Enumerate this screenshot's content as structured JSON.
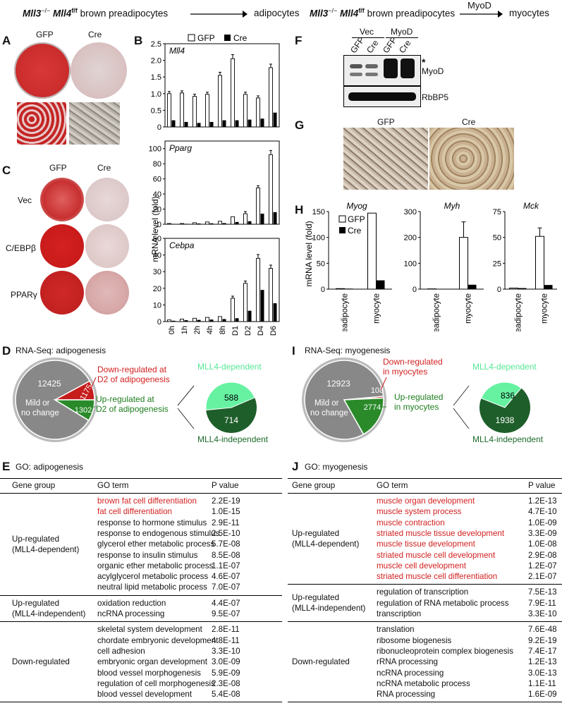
{
  "header_left": {
    "prefix": "Mll3",
    "sup1": "−/−",
    "mid": "Mll4",
    "sup2": "f/f",
    "rest": "brown preadipocytes",
    "target": "adipocytes"
  },
  "header_right": {
    "prefix": "Mll3",
    "sup1": "−/−",
    "mid": "Mll4",
    "sup2": "f/f",
    "rest": "brown preadipocytes",
    "arrow_label": "MyoD",
    "target": "myocytes"
  },
  "panels": {
    "A": "A",
    "B": "B",
    "C": "C",
    "D": "D",
    "E": "E",
    "F": "F",
    "G": "G",
    "H": "H",
    "I": "I",
    "J": "J"
  },
  "panel_a": {
    "gfp": "GFP",
    "cre": "Cre"
  },
  "panel_c": {
    "gfp": "GFP",
    "cre": "Cre",
    "rows": [
      "Vec",
      "C/EBPβ",
      "PPARγ"
    ]
  },
  "panel_b": {
    "legend_gfp": "GFP",
    "legend_cre": "Cre",
    "ylabel": "mRNA level (fold)",
    "xticks": [
      "0h",
      "1h",
      "2h",
      "4h",
      "8h",
      "D1",
      "D2",
      "D4",
      "D6"
    ]
  },
  "chart_data": [
    {
      "type": "bar",
      "title": "Mll4",
      "categories": [
        "0h",
        "1h",
        "2h",
        "4h",
        "8h",
        "D1",
        "D2",
        "D4",
        "D6"
      ],
      "series": [
        {
          "name": "GFP",
          "values": [
            1.0,
            1.02,
            0.92,
            0.98,
            1.55,
            2.05,
            0.98,
            0.87,
            1.78
          ]
        },
        {
          "name": "Cre",
          "values": [
            0.2,
            0.15,
            0.12,
            0.15,
            0.2,
            0.2,
            0.22,
            0.25,
            0.43
          ]
        }
      ],
      "yticks": [
        "0",
        "0.5",
        "1.0",
        "1.5",
        "2.0",
        "2.5"
      ],
      "ylim": [
        0,
        2.5
      ]
    },
    {
      "type": "bar",
      "title": "Pparg",
      "categories": [
        "0h",
        "1h",
        "2h",
        "4h",
        "8h",
        "D1",
        "D2",
        "D4",
        "D6"
      ],
      "series": [
        {
          "name": "GFP",
          "values": [
            1,
            1,
            2,
            3,
            4,
            10,
            14,
            48,
            92
          ]
        },
        {
          "name": "Cre",
          "values": [
            0.5,
            0.6,
            1,
            1.2,
            1.5,
            3,
            4,
            14,
            16
          ]
        }
      ],
      "yticks": [
        "0",
        "20",
        "40",
        "60",
        "80",
        "100"
      ],
      "ylim": [
        0,
        110
      ]
    },
    {
      "type": "bar",
      "title": "Cebpa",
      "categories": [
        "0h",
        "1h",
        "2h",
        "4h",
        "8h",
        "D1",
        "D2",
        "D4",
        "D6"
      ],
      "series": [
        {
          "name": "GFP",
          "values": [
            1,
            1.5,
            2,
            2.5,
            3,
            14,
            23,
            38,
            32
          ]
        },
        {
          "name": "Cre",
          "values": [
            0.5,
            0.8,
            1,
            1.2,
            1.5,
            2,
            6.5,
            19,
            11
          ]
        }
      ],
      "yticks": [
        "0",
        "10",
        "20",
        "30",
        "40",
        "50"
      ],
      "ylim": [
        0,
        50
      ]
    },
    {
      "type": "bar",
      "title": "Myog",
      "categories": [
        "preadipocyte",
        "myocyte"
      ],
      "series": [
        {
          "name": "GFP",
          "values": [
            1,
            147
          ]
        },
        {
          "name": "Cre",
          "values": [
            1,
            17
          ]
        }
      ],
      "yticks": [
        "0",
        "50",
        "100",
        "150"
      ],
      "ylim": [
        0,
        150
      ]
    },
    {
      "type": "bar",
      "title": "Myh",
      "categories": [
        "preadipocyte",
        "myocyte"
      ],
      "series": [
        {
          "name": "GFP",
          "values": [
            1,
            200
          ]
        },
        {
          "name": "Cre",
          "values": [
            1,
            17
          ]
        }
      ],
      "yticks": [
        "0",
        "100",
        "200",
        "300"
      ],
      "ylim": [
        0,
        300
      ]
    },
    {
      "type": "bar",
      "title": "Mck",
      "categories": [
        "preadipocyte",
        "myocyte"
      ],
      "series": [
        {
          "name": "GFP",
          "values": [
            1,
            51
          ]
        },
        {
          "name": "Cre",
          "values": [
            1,
            4
          ]
        }
      ],
      "yticks": [
        "0",
        "25",
        "50",
        "75"
      ],
      "ylim": [
        0,
        75
      ]
    },
    {
      "type": "pie",
      "title": "RNA-Seq: adipogenesis",
      "labels": [
        "Mild or no change",
        "Down-regulated at D2 of adipogenesis",
        "Up-regulated at D2 of adipogenesis"
      ],
      "values": [
        12425,
        1175,
        1302
      ]
    },
    {
      "type": "pie",
      "title": "",
      "labels": [
        "MLL4-dependent",
        "MLL4-independent"
      ],
      "values": [
        588,
        714
      ]
    },
    {
      "type": "pie",
      "title": "RNA-Seq: myogenesis",
      "labels": [
        "Mild or no change",
        "Down-regulated in myocytes",
        "Up-regulated in myocytes"
      ],
      "values": [
        12923,
        108,
        2774
      ]
    },
    {
      "type": "pie",
      "title": "",
      "labels": [
        "MLL4-dependent",
        "MLL4-independent"
      ],
      "values": [
        836,
        1938
      ]
    }
  ],
  "panel_f": {
    "vec": "Vec",
    "myod": "MyoD",
    "lanes": [
      "GFP",
      "Cre",
      "GFP",
      "Cre"
    ],
    "star": "*",
    "band1": "MyoD",
    "band2": "RbBP5"
  },
  "panel_g": {
    "gfp": "GFP",
    "cre": "Cre"
  },
  "panel_h": {
    "ylabel": "mRNA level (fold)",
    "legend_gfp": "GFP",
    "legend_cre": "Cre",
    "xticks": [
      "preadipocyte",
      "myocyte"
    ]
  },
  "panel_d": {
    "title": "RNA-Seq: adipogenesis",
    "n_big": "12425",
    "n_down": "1175",
    "n_up": "1302",
    "mild": "Mild or\nno change",
    "down_label": "Down-regulated at\nD2 of adipogenesis",
    "up_label": "Up-regulated at\nD2 of adipogenesis",
    "dep_label": "MLL4-dependent",
    "indep_label": "MLL4-independent",
    "n_dep": "588",
    "n_indep": "714"
  },
  "panel_i": {
    "title": "RNA-Seq: myogenesis",
    "n_big": "12923",
    "n_down": "108",
    "n_up": "2774",
    "mild": "Mild or\nno change",
    "down_label": "Down-regulated\nin myocytes",
    "up_label": "Up-regulated\nin myocytes",
    "dep_label": "MLL4-dependent",
    "indep_label": "MLL4-independent",
    "n_dep": "836",
    "n_indep": "1938"
  },
  "panel_e": {
    "title": "GO: adipogenesis",
    "col_group": "Gene group",
    "col_term": "GO term",
    "col_p": "P value",
    "groups": [
      {
        "name": "Up-regulated\n(MLL4-dependent)",
        "rows": [
          {
            "term": "brown fat cell differentiation",
            "p": "2.2E-19",
            "red": true
          },
          {
            "term": "fat cell differentiation",
            "p": "1.0E-15",
            "red": true
          },
          {
            "term": "response to hormone stimulus",
            "p": "2.9E-11"
          },
          {
            "term": "response to endogenous stimulus",
            "p": "2.5E-10"
          },
          {
            "term": "glycerol ether metabolic process",
            "p": "5.7E-08"
          },
          {
            "term": "response to insulin stimulus",
            "p": "8.5E-08"
          },
          {
            "term": "organic ether metabolic process",
            "p": "1.1E-07"
          },
          {
            "term": "acylglycerol metabolic process",
            "p": "4.6E-07"
          },
          {
            "term": "neutral lipid metabolic process",
            "p": "7.0E-07"
          }
        ]
      },
      {
        "name": "Up-regulated\n(MLL4-independent)",
        "rows": [
          {
            "term": "oxidation reduction",
            "p": "4.4E-07"
          },
          {
            "term": "ncRNA processing",
            "p": "9.5E-07"
          }
        ]
      },
      {
        "name": "Down-regulated",
        "rows": [
          {
            "term": "skeletal system development",
            "p": "2.8E-11"
          },
          {
            "term": "chordate embryonic development",
            "p": "4.8E-11"
          },
          {
            "term": "cell adhesion",
            "p": "3.3E-10"
          },
          {
            "term": "embryonic organ development",
            "p": "3.0E-09"
          },
          {
            "term": "blood vessel morphogenesis",
            "p": "5.9E-09"
          },
          {
            "term": "regulation of cell morphogenesis",
            "p": "2.3E-08"
          },
          {
            "term": "blood vessel development",
            "p": "5.4E-08"
          }
        ]
      }
    ]
  },
  "panel_j": {
    "title": "GO: myogenesis",
    "col_group": "Gene group",
    "col_term": "GO term",
    "col_p": "P value",
    "groups": [
      {
        "name": "Up-regulated\n(MLL4-dependent)",
        "rows": [
          {
            "term": "muscle organ development",
            "p": "1.2E-13",
            "red": true
          },
          {
            "term": "muscle system process",
            "p": "4.7E-10",
            "red": true
          },
          {
            "term": "muscle contraction",
            "p": "1.0E-09",
            "red": true
          },
          {
            "term": "striated muscle tissue development",
            "p": "3.3E-09",
            "red": true
          },
          {
            "term": "muscle tissue development",
            "p": "1.0E-08",
            "red": true
          },
          {
            "term": "striated muscle cell development",
            "p": "2.9E-08",
            "red": true
          },
          {
            "term": "muscle cell development",
            "p": "1.2E-07",
            "red": true
          },
          {
            "term": "striated muscle cell differentiation",
            "p": "2.1E-07",
            "red": true
          }
        ]
      },
      {
        "name": "Up-regulated\n(MLL4-independent)",
        "rows": [
          {
            "term": "regulation of transcription",
            "p": "7.5E-13"
          },
          {
            "term": "regulation of RNA metabolic process",
            "p": "7.9E-11"
          },
          {
            "term": "transcription",
            "p": "3.3E-10"
          }
        ]
      },
      {
        "name": "Down-regulated",
        "rows": [
          {
            "term": "translation",
            "p": "7.6E-48"
          },
          {
            "term": "ribosome biogenesis",
            "p": "9.2E-19"
          },
          {
            "term": "ribonucleoprotein complex biogenesis",
            "p": "7.4E-17"
          },
          {
            "term": "rRNA processing",
            "p": "1.2E-13"
          },
          {
            "term": "ncRNA processing",
            "p": "3.0E-13"
          },
          {
            "term": "ncRNA metabolic process",
            "p": "1.1E-11"
          },
          {
            "term": "RNA processing",
            "p": "1.6E-09"
          }
        ]
      }
    ]
  }
}
